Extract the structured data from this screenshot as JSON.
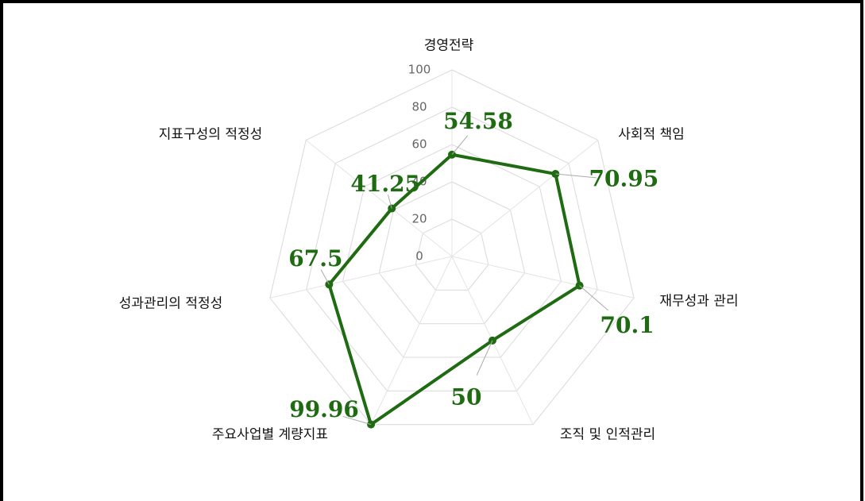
{
  "chart_data": {
    "type": "radar",
    "categories": [
      "경영전략",
      "사회적 책임",
      "재무성과 관리",
      "조직 및 인적관리",
      "주요사업별 계량지표",
      "성과관리의 적정성",
      "지표구성의 적정성"
    ],
    "values": [
      54.58,
      70.95,
      70.1,
      50,
      99.96,
      67.5,
      41.25
    ],
    "color": "#1e6b12",
    "ylim": [
      0,
      100
    ],
    "yticks": [
      0,
      20,
      40,
      60,
      80,
      100
    ],
    "grid": true
  }
}
